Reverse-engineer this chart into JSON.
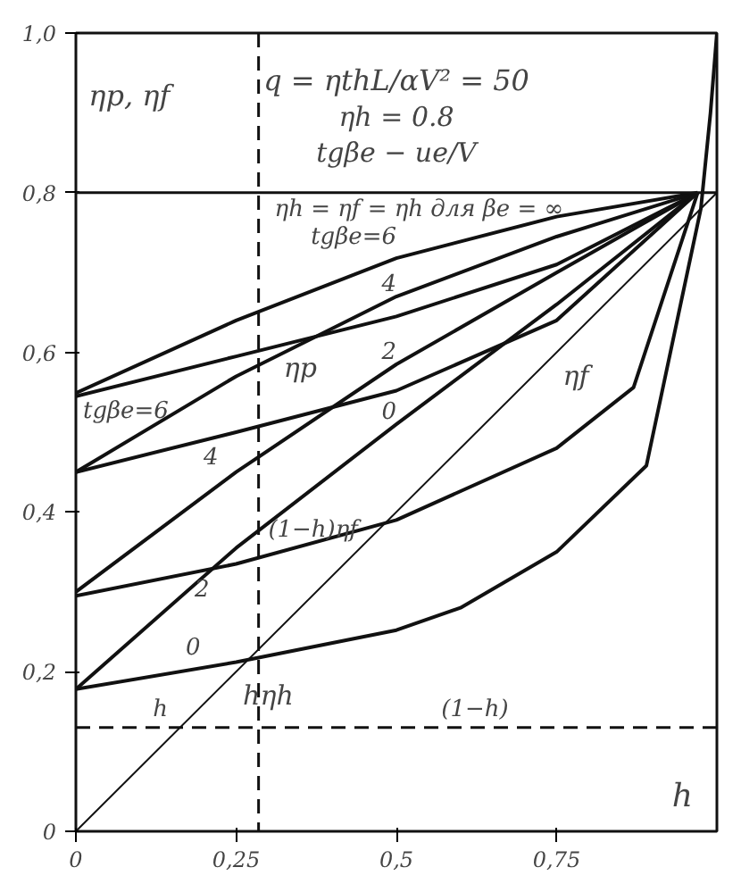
{
  "chart_data": {
    "type": "line",
    "title": "q = ηthL/αV² = 50",
    "ylabel": "ηp, ηf",
    "xlabel": "h",
    "xlim": [
      0,
      1
    ],
    "ylim": [
      0,
      1
    ],
    "xticks": [
      0,
      {
        "value": 0.25,
        "label": "0,25"
      },
      {
        "value": 0.5,
        "label": "0,5"
      },
      {
        "value": 0.75,
        "label": "0,75"
      }
    ],
    "yticks": [
      0,
      {
        "value": 0.2,
        "label": "0,2"
      },
      {
        "value": 0.4,
        "label": "0,4"
      },
      {
        "value": 0.6,
        "label": "0,6"
      },
      {
        "value": 0.8,
        "label": "0,8"
      },
      {
        "value": 1.0,
        "label": "1,0"
      }
    ],
    "grid": false,
    "marker": "none",
    "line_style": "solid",
    "series": [
      {
        "color": "#111111",
        "x": [
          0,
          0.25,
          0.5,
          0.75,
          0.97
        ],
        "values": [
          0.549,
          0.64,
          0.718,
          0.77,
          0.8
        ]
      },
      {
        "color": "#111111",
        "x": [
          0,
          0.25,
          0.5,
          0.75,
          0.97
        ],
        "values": [
          0.45,
          0.57,
          0.67,
          0.745,
          0.8
        ]
      },
      {
        "color": "#111111",
        "x": [
          0,
          0.25,
          0.5,
          0.75,
          0.97
        ],
        "values": [
          0.3,
          0.45,
          0.585,
          0.7,
          0.8
        ]
      },
      {
        "color": "#111111",
        "x": [
          0,
          0.25,
          0.5,
          0.75,
          0.97
        ],
        "values": [
          0.178,
          0.355,
          0.51,
          0.66,
          0.8
        ]
      },
      {
        "color": "#111111",
        "x": [
          0,
          0.25,
          0.5,
          0.75,
          0.97
        ],
        "values": [
          0.545,
          0.595,
          0.645,
          0.71,
          0.8
        ]
      },
      {
        "color": "#111111",
        "x": [
          0,
          0.25,
          0.5,
          0.75,
          0.97
        ],
        "values": [
          0.45,
          0.5,
          0.552,
          0.64,
          0.8
        ]
      },
      {
        "color": "#111111",
        "x": [
          0,
          0.25,
          0.5,
          0.75,
          0.87,
          0.97
        ],
        "values": [
          0.295,
          0.335,
          0.39,
          0.48,
          0.556,
          0.8
        ]
      },
      {
        "color": "#111111",
        "x": [
          0,
          0.25,
          0.5,
          0.6,
          0.75,
          0.89,
          0.975,
          0.99,
          1.0
        ],
        "values": [
          0.178,
          0.212,
          0.252,
          0.28,
          0.35,
          0.458,
          0.78,
          0.9,
          1.0
        ]
      },
      {
        "color": "#111111",
        "x": [
          0,
          1
        ],
        "values": [
          0,
          0.8
        ]
      }
    ],
    "ref_lines": [
      {
        "axis": "y",
        "value": 0.8,
        "label": "ηh = ηf = ηh для βe = ∞",
        "color": "#111111",
        "line_style": "solid"
      },
      {
        "axis": "y",
        "value": 0.13,
        "color": "#111111",
        "line_style": "dashed"
      },
      {
        "axis": "x",
        "value": 0.285,
        "color": "#111111",
        "line_style": "dashed"
      }
    ],
    "annotations": [
      "ηh = 0.8",
      "tgβe − ue/V",
      {
        "text": "tgβe=6",
        "x": 0.5,
        "y": 0.718
      },
      {
        "text": "4",
        "x": 0.5,
        "y": 0.67
      },
      {
        "text": "2",
        "x": 0.5,
        "y": 0.585
      },
      {
        "text": "0",
        "x": 0.5,
        "y": 0.51
      },
      {
        "text": "tgβe=6",
        "x": 0,
        "y": 0.545
      },
      {
        "text": "4",
        "x": 0.25,
        "y": 0.5
      },
      {
        "text": "2",
        "x": 0.25,
        "y": 0.335
      },
      {
        "text": "0",
        "x": 0.25,
        "y": 0.212
      },
      "ηp",
      "ηf",
      {
        "text": "(1−h)ηf",
        "x": 0.3,
        "y": 0.36
      },
      "hηh",
      {
        "text": "h",
        "x": 0.12,
        "y": 0.135
      },
      {
        "text": "(1−h)",
        "x": 0.57,
        "y": 0.135
      }
    ]
  }
}
